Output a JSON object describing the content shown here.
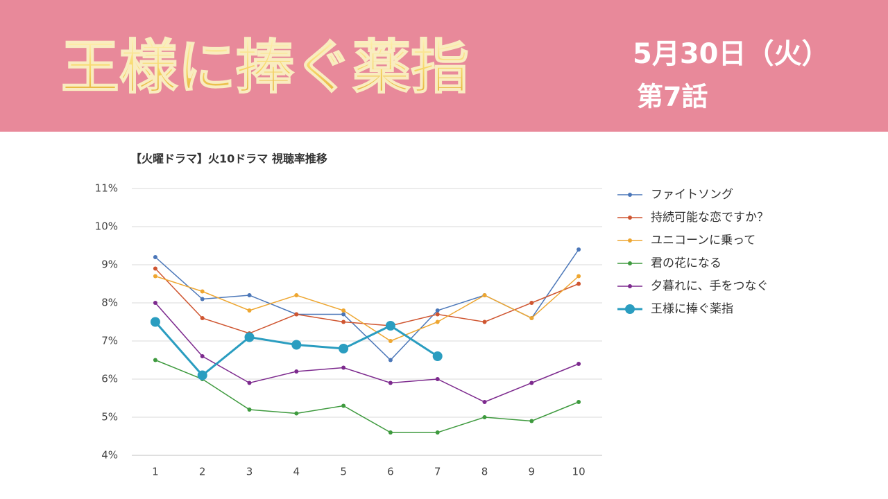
{
  "header": {
    "title": "王様に捧ぐ薬指",
    "date": "5月30日（火）",
    "episode": "第7話"
  },
  "chart_data": {
    "type": "line",
    "title": "【火曜ドラマ】火10ドラマ 視聴率推移",
    "x": [
      1,
      2,
      3,
      4,
      5,
      6,
      7,
      8,
      9,
      10
    ],
    "xlim": [
      0.5,
      10.5
    ],
    "ylim": [
      4,
      11
    ],
    "yticks": [
      {
        "value": 4,
        "label": "4%"
      },
      {
        "value": 5,
        "label": "5%"
      },
      {
        "value": 6,
        "label": "6%"
      },
      {
        "value": 7,
        "label": "7%"
      },
      {
        "value": 8,
        "label": "8%"
      },
      {
        "value": 9,
        "label": "9%"
      },
      {
        "value": 10,
        "label": "10%"
      },
      {
        "value": 11,
        "label": "11%"
      }
    ],
    "grid": true,
    "legend": "right",
    "series": [
      {
        "name": "ファイトソング",
        "color": "#4a76b8",
        "values": [
          9.2,
          8.1,
          8.2,
          7.7,
          7.7,
          6.5,
          7.8,
          8.2,
          7.6,
          9.4
        ]
      },
      {
        "name": "持続可能な恋ですか？",
        "color": "#cf5530",
        "values": [
          8.9,
          7.6,
          7.2,
          7.7,
          7.5,
          7.4,
          7.7,
          7.5,
          8.0,
          8.5
        ]
      },
      {
        "name": "ユニコーンに乗って",
        "color": "#eea630",
        "values": [
          8.7,
          8.3,
          7.8,
          8.2,
          7.8,
          7.0,
          7.5,
          8.2,
          7.6,
          8.7
        ]
      },
      {
        "name": "君の花になる",
        "color": "#3e9a3e",
        "values": [
          6.5,
          6.0,
          5.2,
          5.1,
          5.3,
          4.6,
          4.6,
          5.0,
          4.9,
          5.4
        ]
      },
      {
        "name": "夕暮れに、手をつなぐ",
        "color": "#7d2a8e",
        "values": [
          8.0,
          6.6,
          5.9,
          6.2,
          6.3,
          5.9,
          6.0,
          5.4,
          5.9,
          6.4
        ]
      },
      {
        "name": "王様に捧ぐ薬指",
        "color": "#2a9dc0",
        "highlight": true,
        "values": [
          7.5,
          6.1,
          7.1,
          6.9,
          6.8,
          7.4,
          6.6,
          null,
          null,
          null
        ]
      }
    ]
  }
}
